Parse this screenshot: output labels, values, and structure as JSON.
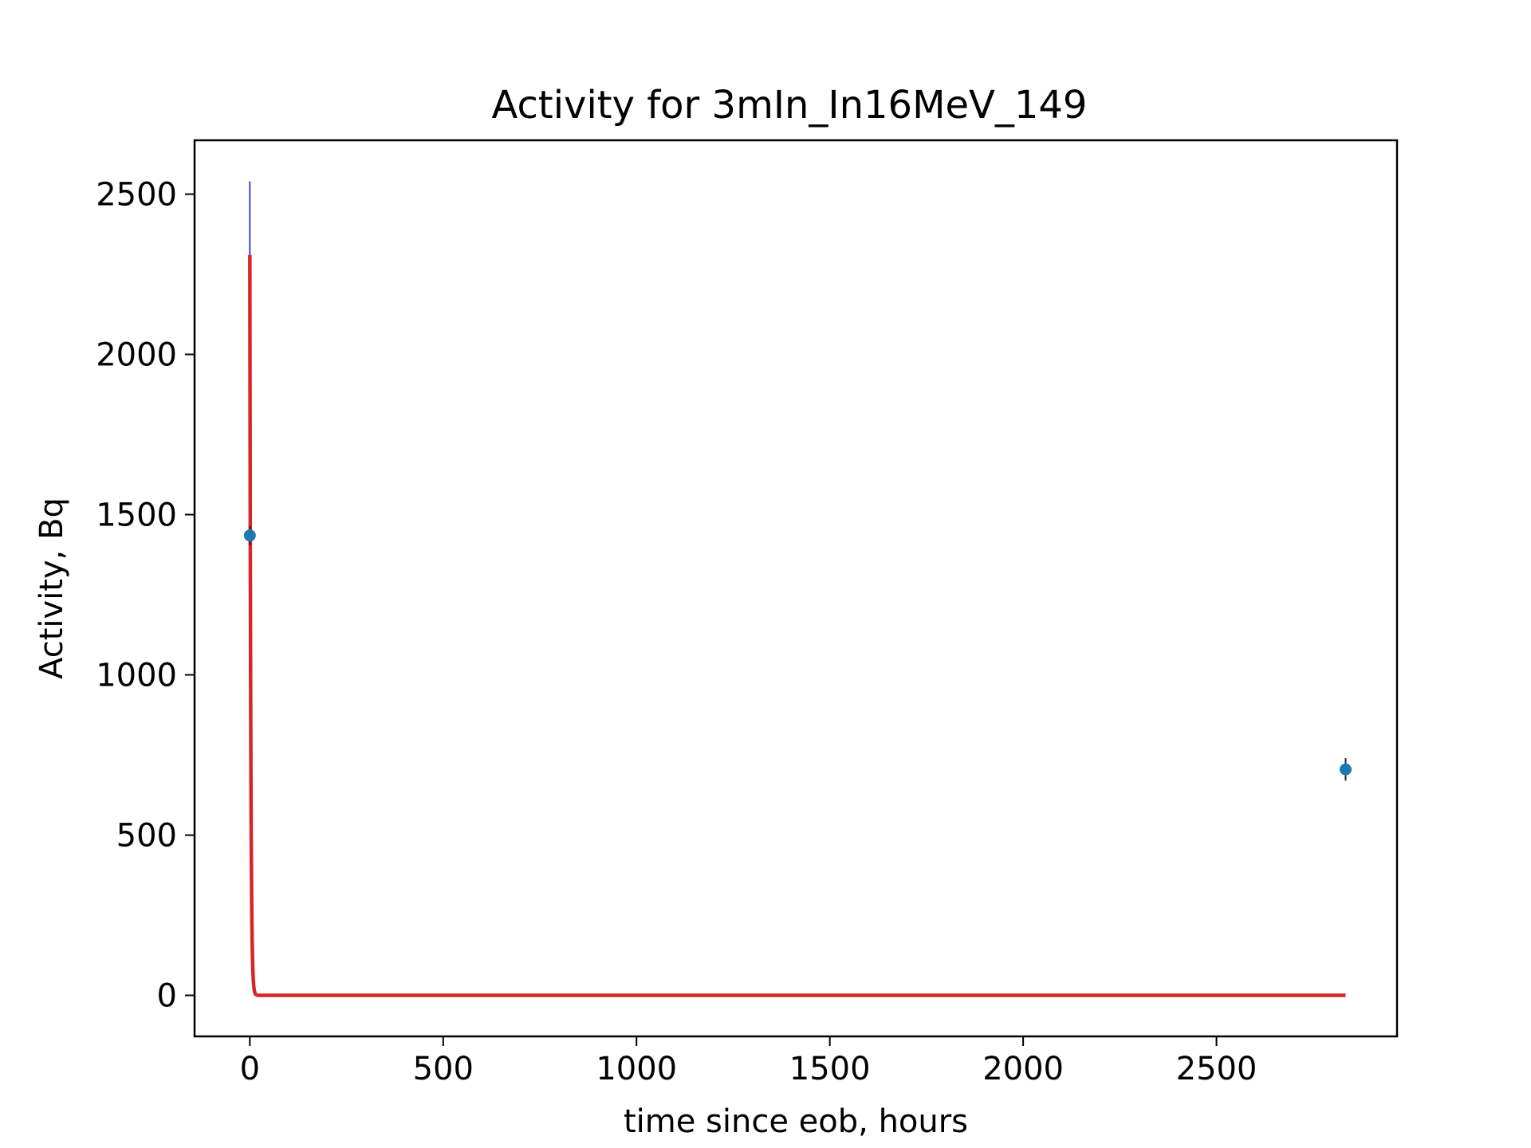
{
  "chart_data": {
    "type": "scatter",
    "title": "Activity for 3mIn_In16MeV_149",
    "xlabel": "time since eob, hours",
    "ylabel": "Activity, Bq",
    "xlim": [
      -143,
      2967
    ],
    "ylim": [
      -128,
      2668
    ],
    "xticks": [
      0,
      500,
      1000,
      1500,
      2000,
      2500
    ],
    "yticks": [
      0,
      500,
      1000,
      1500,
      2000,
      2500
    ],
    "grid": false,
    "legend": "none",
    "series": [
      {
        "kind": "points-with-errorbars",
        "color": "#1f77b4",
        "points": [
          {
            "x": 0,
            "y": 1435,
            "yerr": 30
          },
          {
            "x": 2834,
            "y": 705,
            "yerr": 35
          }
        ]
      },
      {
        "kind": "fit-curve",
        "color": "#d62728",
        "model": "exponential-decay",
        "x_start": 0,
        "x_end": 2834,
        "y0": 2310,
        "half_life_hours": 1.6
      },
      {
        "kind": "fit-uncertainty-band",
        "color": "#0000ff",
        "x": 0,
        "y_min": 2080,
        "y_max": 2540
      }
    ]
  }
}
